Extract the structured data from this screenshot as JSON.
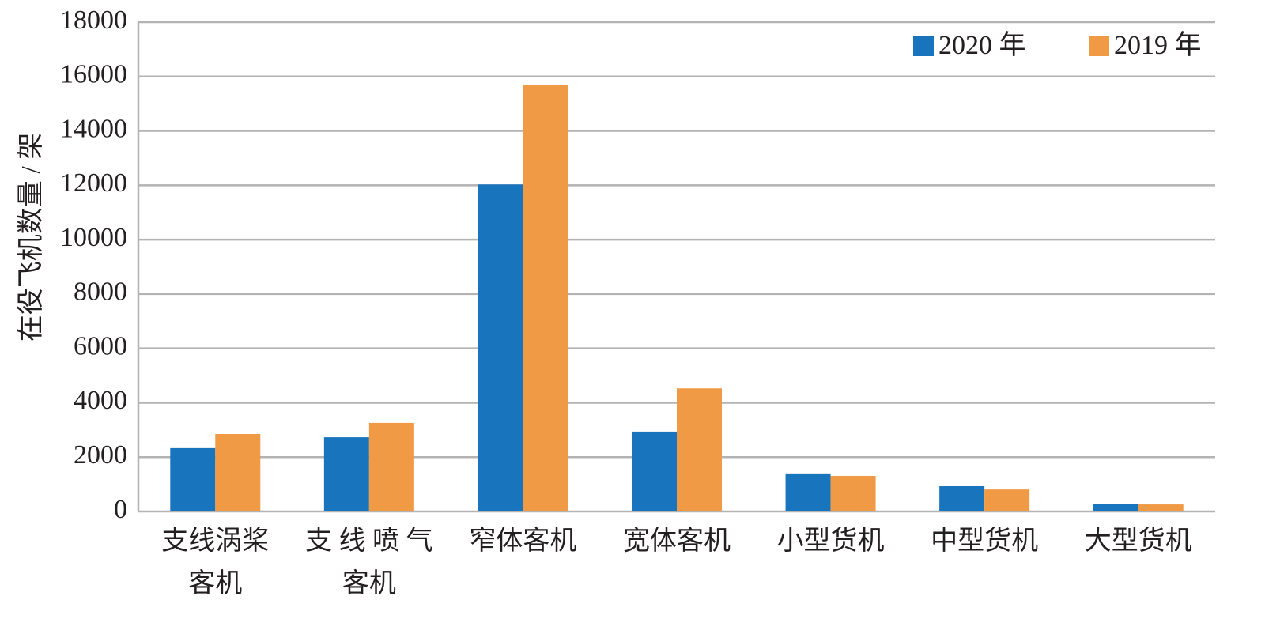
{
  "chart_data": {
    "type": "bar",
    "y_axis_label": "在役飞机数量 / 架",
    "categories": [
      "支线涡桨\n客机",
      "支 线 喷 气\n客机",
      "窄体客机",
      "宽体客机",
      "小型货机",
      "中型货机",
      "大型货机"
    ],
    "series": [
      {
        "name": "2020 年",
        "color": "#1874bd",
        "values": [
          2330,
          2730,
          12030,
          2940,
          1400,
          930,
          290
        ]
      },
      {
        "name": "2019 年",
        "color": "#f19a45",
        "values": [
          2850,
          3260,
          15700,
          4530,
          1310,
          810,
          260
        ]
      }
    ],
    "ylim": [
      0,
      18000
    ],
    "yticks": [
      0,
      2000,
      4000,
      6000,
      8000,
      10000,
      12000,
      14000,
      16000,
      18000
    ],
    "grid": true,
    "legend": "upper right"
  }
}
